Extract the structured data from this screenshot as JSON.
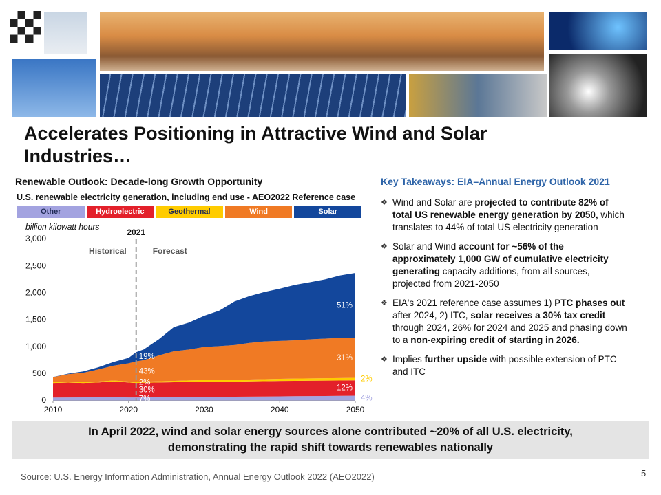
{
  "title": "Accelerates Positioning in Attractive Wind and Solar Industries…",
  "left_heading": "Renewable Outlook: Decade-long Growth Opportunity",
  "chart_data": {
    "type": "stacked-area",
    "title": "U.S. renewable electricity generation, including end use - AEO2022 Reference case",
    "ylabel": "billion kilowatt hours",
    "x": [
      2010,
      2012,
      2014,
      2016,
      2018,
      2020,
      2021,
      2022,
      2024,
      2026,
      2028,
      2030,
      2032,
      2034,
      2036,
      2038,
      2040,
      2042,
      2044,
      2046,
      2048,
      2050
    ],
    "series": [
      {
        "name": "Other",
        "color": "#a3a3e0",
        "text_color": "#1f2a55",
        "share_labels": [
          "7%",
          "4%"
        ],
        "values": [
          60,
          62,
          64,
          66,
          68,
          63,
          63,
          64,
          66,
          68,
          70,
          72,
          74,
          76,
          78,
          80,
          83,
          86,
          88,
          90,
          92,
          95
        ]
      },
      {
        "name": "Hydroelectric",
        "color": "#e3202a",
        "text_color": "#ffffff",
        "share_labels": [
          "30%",
          "12%"
        ],
        "values": [
          270,
          276,
          266,
          274,
          292,
          277,
          268,
          271,
          274,
          277,
          280,
          283,
          280,
          280,
          282,
          284,
          285,
          285,
          285,
          285,
          285,
          285
        ]
      },
      {
        "name": "Geothermal",
        "color": "#ffcc00",
        "text_color": "#1f2a55",
        "share_labels": [
          "2%",
          "2%"
        ],
        "values": [
          15,
          16,
          16,
          17,
          17,
          18,
          18,
          20,
          22,
          25,
          28,
          30,
          32,
          34,
          36,
          38,
          40,
          42,
          44,
          45,
          46,
          47
        ]
      },
      {
        "name": "Wind",
        "color": "#f07a24",
        "text_color": "#ffffff",
        "share_labels": [
          "43%",
          "31%"
        ],
        "values": [
          95,
          140,
          175,
          227,
          275,
          340,
          384,
          400,
          480,
          550,
          575,
          615,
          630,
          645,
          680,
          700,
          705,
          710,
          725,
          735,
          745,
          736
        ]
      },
      {
        "name": "Solar",
        "color": "#13479c",
        "text_color": "#ffffff",
        "share_labels": [
          "19%",
          "51%"
        ],
        "values": [
          2,
          10,
          25,
          40,
          70,
          100,
          170,
          200,
          300,
          450,
          500,
          580,
          660,
          810,
          870,
          920,
          970,
          1030,
          1060,
          1100,
          1160,
          1211
        ]
      }
    ],
    "xlim": [
      2010,
      2050
    ],
    "xticks": [
      2010,
      2020,
      2030,
      2040,
      2050
    ],
    "ylim": [
      0,
      3000
    ],
    "yticks": [
      0,
      500,
      {
        "value": 1000,
        "label": "1,000"
      },
      {
        "value": 1500,
        "label": "1,500"
      },
      {
        "value": 2000,
        "label": "2,000"
      },
      {
        "value": 2500,
        "label": "2,500"
      },
      {
        "value": 3000,
        "label": "3,000"
      }
    ],
    "divider": {
      "x": 2021,
      "label": "2021",
      "left_label": "Historical",
      "right_label": "Forecast"
    }
  },
  "takeaways": {
    "heading": "Key Takeaways: EIA–Annual Energy Outlook 2021",
    "bullets": [
      [
        "Wind and Solar are ",
        "projected to contribute 82% of total US renewable energy generation by 2050,",
        " which translates to 44% of total US electricity generation"
      ],
      [
        "Solar and Wind ",
        "account for ~56% of the approximately 1,000 GW of cumulative electricity generating",
        " capacity additions, from all sources, projected from 2021-2050"
      ],
      [
        "EIA's 2021 reference case assumes 1) ",
        "PTC phases out",
        " after 2024, 2) ITC, ",
        "solar receives a 30% tax credit",
        " through 2024, 26% for 2024 and 2025 and phasing down to a ",
        "non-expiring credit of starting in 2026."
      ],
      [
        "Implies ",
        "further upside",
        " with possible extension of PTC and ITC"
      ]
    ]
  },
  "callout": [
    "In April 2022, wind and solar energy sources alone contributed ~20% of all U.S. electricity,",
    "demonstrating the rapid shift towards renewables nationally"
  ],
  "source": "Source: U.S. Energy Information Administration, Annual Energy Outlook 2022 (AEO2022)",
  "page_number": "5"
}
